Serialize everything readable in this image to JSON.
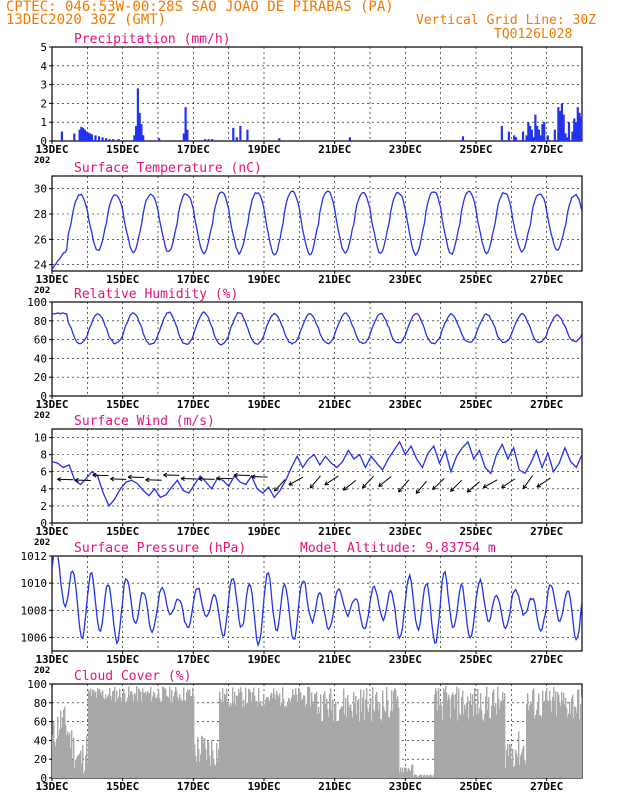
{
  "header": {
    "line1": "CPTEC:   046:53W-00:28S  SAO JOAO DE PIRABAS (PA)",
    "line2": "13DEC2020 30Z (GMT)",
    "grid_note": "Vertical Grid Line: 30Z",
    "code": "TQ0126L028"
  },
  "colors": {
    "series": "#2233ee",
    "title": "#e8107a",
    "header": "#f07800",
    "cloud": "#a8a8a8"
  },
  "dates": [
    "13DEC",
    "15DEC",
    "17DEC",
    "19DEC",
    "21DEC",
    "23DEC",
    "25DEC",
    "27DEC"
  ],
  "year_fragment": "202",
  "chart_data": [
    {
      "type": "bar",
      "title": "Precipitation (mm/h)",
      "ylim": [
        0,
        5
      ],
      "yticks": [
        "0",
        "1",
        "2",
        "3",
        "4",
        "5"
      ],
      "x": [
        0.25,
        0.6,
        0.75,
        0.8,
        0.85,
        0.9,
        0.95,
        1.0,
        1.05,
        1.1,
        1.2,
        1.3,
        1.4,
        1.5,
        1.6,
        1.7,
        1.85,
        2.3,
        2.35,
        2.4,
        2.45,
        2.5,
        2.55,
        3.0,
        3.7,
        3.75,
        3.8,
        4.3,
        4.4,
        4.5,
        5.1,
        5.2,
        5.3,
        5.5,
        6.4,
        8.4,
        11.6,
        12.7,
        12.9,
        13.05,
        13.1,
        13.3,
        13.4,
        13.45,
        13.5,
        13.55,
        13.6,
        13.65,
        13.7,
        13.75,
        13.8,
        13.85,
        13.9,
        14.0,
        14.2,
        14.3,
        14.35,
        14.4,
        14.45,
        14.5,
        14.55,
        14.6,
        14.7,
        14.75,
        14.8,
        14.85,
        14.9,
        14.95
      ],
      "values": [
        0.5,
        0.4,
        0.6,
        0.75,
        0.7,
        0.6,
        0.5,
        0.45,
        0.4,
        0.35,
        0.3,
        0.25,
        0.2,
        0.15,
        0.1,
        0.1,
        0.1,
        0.3,
        0.8,
        2.8,
        1.5,
        0.9,
        0.3,
        0.15,
        0.4,
        1.8,
        0.6,
        0.1,
        0.1,
        0.1,
        0.7,
        0.2,
        0.8,
        0.6,
        0.15,
        0.2,
        0.25,
        0.8,
        0.5,
        0.3,
        0.2,
        0.5,
        0.3,
        1.0,
        0.8,
        0.6,
        0.2,
        1.4,
        0.8,
        0.6,
        0.3,
        0.9,
        1.0,
        0.3,
        0.6,
        1.8,
        1.6,
        2.0,
        1.4,
        0.4,
        0.2,
        1.0,
        0.5,
        1.2,
        1.0,
        1.8,
        1.5,
        1.3
      ]
    },
    {
      "type": "line",
      "title": "Surface Temperature (nC)",
      "ylim": [
        23.5,
        31
      ],
      "yticks": [
        "24",
        "26",
        "28",
        "30"
      ],
      "days": 15,
      "base": 27.3,
      "amplitude": [
        2.2,
        2.2,
        2.3,
        2.3,
        2.4,
        2.4,
        2.5,
        2.5,
        2.4,
        2.4,
        2.5,
        2.5,
        2.4,
        2.3,
        2.2,
        2.1
      ],
      "start": [
        23.7,
        24.8,
        25.3
      ]
    },
    {
      "type": "line",
      "title": "Relative Humidity (%)",
      "ylim": [
        0,
        100
      ],
      "yticks": [
        "0",
        "20",
        "40",
        "60",
        "80",
        "100"
      ],
      "days": 15,
      "base": 72,
      "amplitude": [
        16,
        16,
        17,
        17,
        17,
        17,
        16,
        16,
        16,
        16,
        16,
        15,
        15,
        15,
        14,
        14
      ],
      "start": [
        88,
        90,
        88
      ]
    },
    {
      "type": "line",
      "title": "Surface Wind (m/s)",
      "ylim": [
        0,
        11
      ],
      "yticks": [
        "0",
        "2",
        "4",
        "6",
        "8",
        "10"
      ],
      "values": [
        7.2,
        7.0,
        6.5,
        6.8,
        5.0,
        4.5,
        5.2,
        6.0,
        5.5,
        3.5,
        2.0,
        2.8,
        4.0,
        4.8,
        5.0,
        4.6,
        3.8,
        3.2,
        4.0,
        3.0,
        3.3,
        4.2,
        5.0,
        3.8,
        3.5,
        4.5,
        5.5,
        4.8,
        4.0,
        5.2,
        5.0,
        4.3,
        5.5,
        4.8,
        4.5,
        5.5,
        4.0,
        3.5,
        4.2,
        3.0,
        3.8,
        5.0,
        6.5,
        7.8,
        6.5,
        7.5,
        8.0,
        6.8,
        7.8,
        7.0,
        6.5,
        7.2,
        8.5,
        7.5,
        8.0,
        6.5,
        7.8,
        7.0,
        6.2,
        7.5,
        8.5,
        9.5,
        8.0,
        9.0,
        7.5,
        6.5,
        8.2,
        9.0,
        7.0,
        8.5,
        6.0,
        7.8,
        8.8,
        9.5,
        7.5,
        8.5,
        6.5,
        5.8,
        8.0,
        9.2,
        7.5,
        8.8,
        6.2,
        5.8,
        7.0,
        8.5,
        6.5,
        8.2,
        6.0,
        7.0,
        8.8,
        7.2,
        6.5,
        8.0
      ],
      "arrows": 28
    },
    {
      "type": "line",
      "title": "Surface Pressure (hPa)",
      "subtitle": "Model Altitude: 9.83754 m",
      "ylim": [
        1005,
        1012
      ],
      "yticks": [
        "1006",
        "1008",
        "1010",
        "1012"
      ],
      "days": 15,
      "base": 1008.2
    },
    {
      "type": "bar",
      "title": "Cloud Cover (%)",
      "ylim": [
        0,
        100
      ],
      "yticks": [
        "0",
        "20",
        "40",
        "60",
        "80",
        "100"
      ]
    }
  ]
}
